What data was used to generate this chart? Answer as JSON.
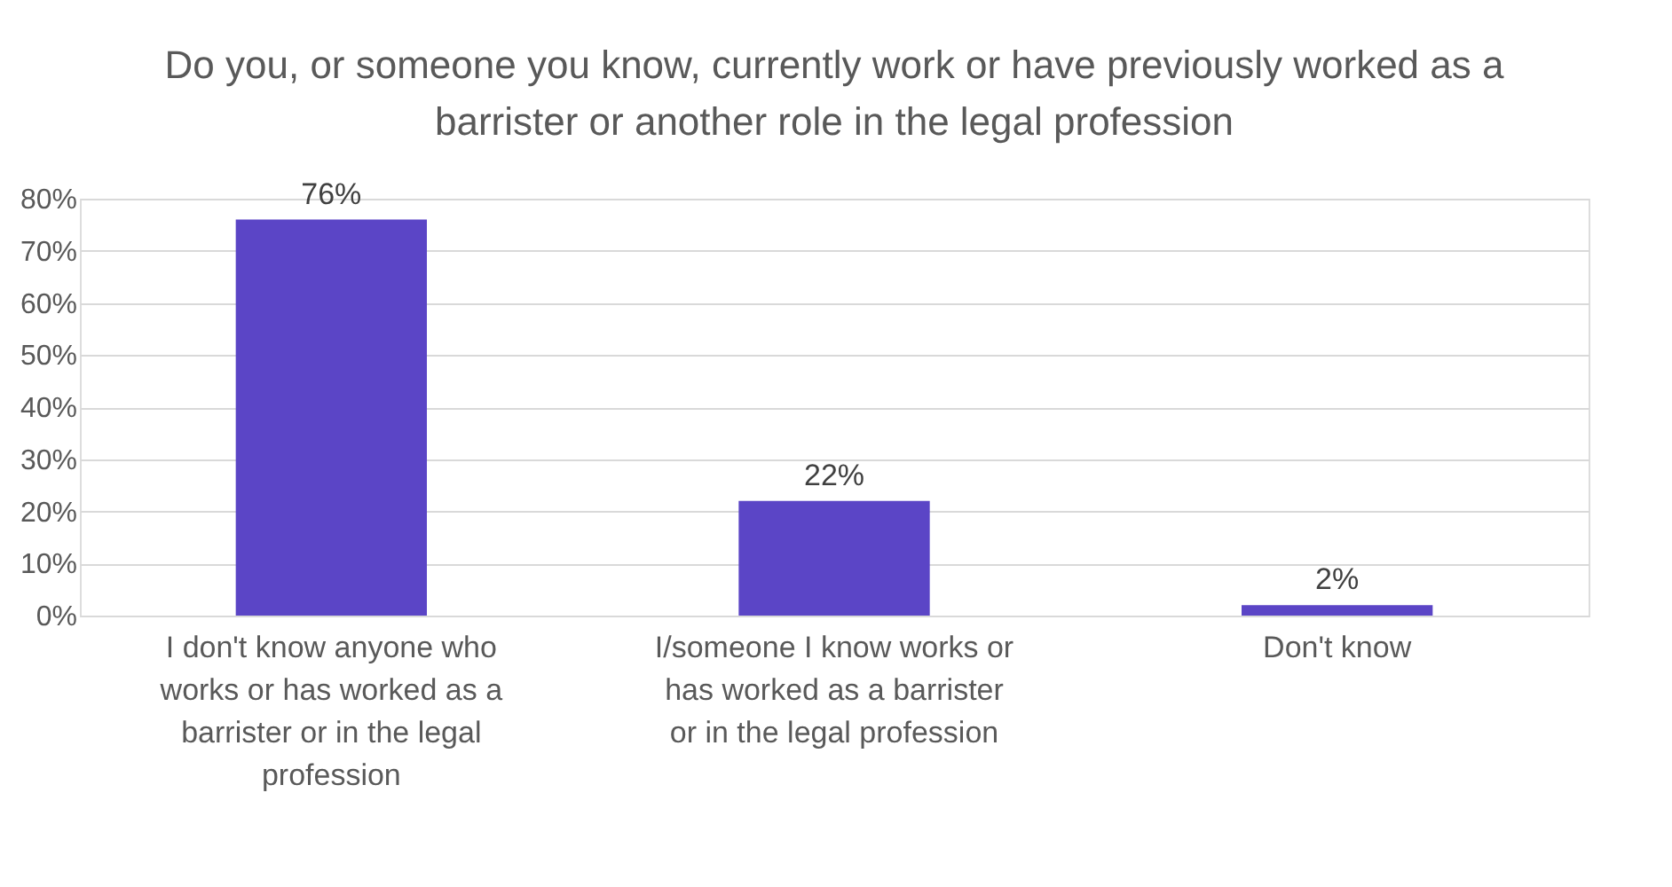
{
  "chart_data": {
    "type": "bar",
    "title": "Do you, or someone you know, currently work or have previously worked as a barrister or another role in the legal profession",
    "categories": [
      "I don't know anyone who works or has worked as a barrister or in the legal profession",
      "I/someone I know works or has worked as a barrister or in the legal profession",
      "Don't know"
    ],
    "values": [
      76,
      22,
      2
    ],
    "value_labels": [
      "76%",
      "22%",
      "2%"
    ],
    "color": "#5b45c6",
    "ylim": [
      0,
      80
    ],
    "yticks": [
      {
        "value": 0,
        "label": "0%"
      },
      {
        "value": 10,
        "label": "10%"
      },
      {
        "value": 20,
        "label": "20%"
      },
      {
        "value": 30,
        "label": "30%"
      },
      {
        "value": 40,
        "label": "40%"
      },
      {
        "value": 50,
        "label": "50%"
      },
      {
        "value": 60,
        "label": "60%"
      },
      {
        "value": 70,
        "label": "70%"
      },
      {
        "value": 80,
        "label": "80%"
      }
    ],
    "grid": "y"
  }
}
